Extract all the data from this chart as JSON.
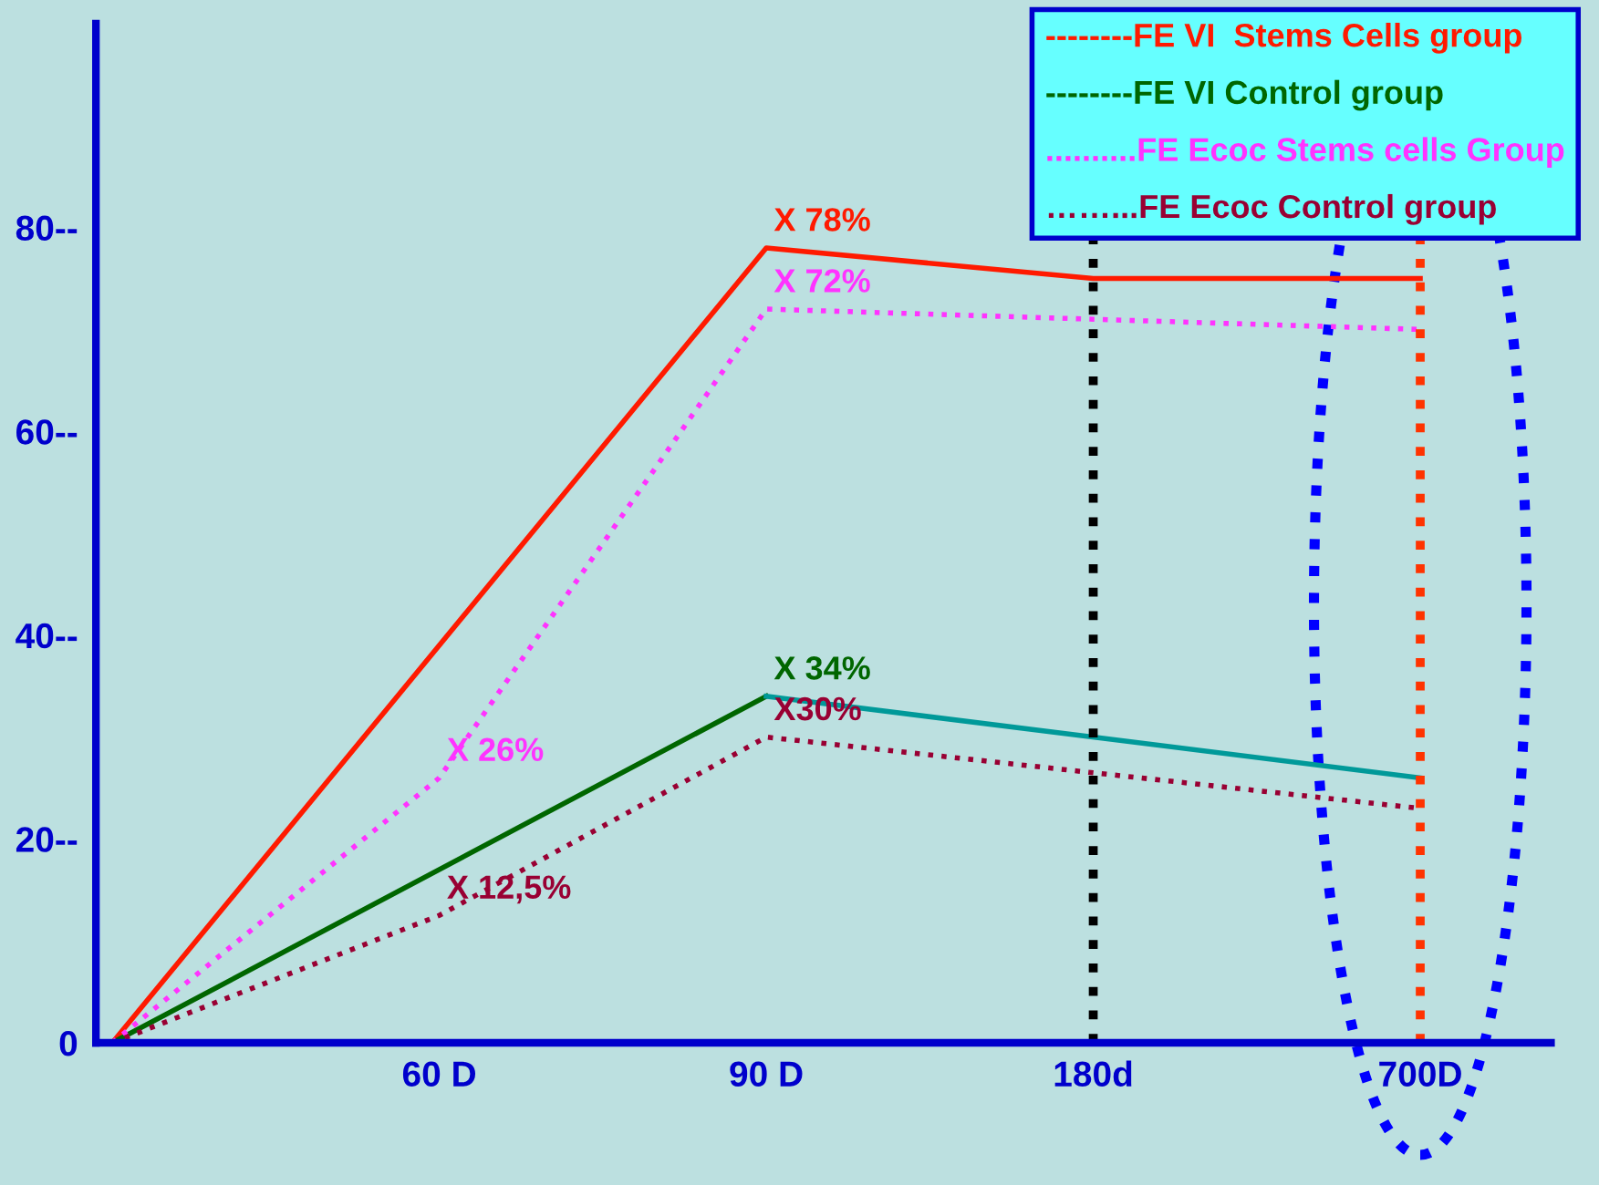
{
  "chart_data": {
    "type": "line",
    "categories": [
      null,
      "60 D",
      "90 D",
      "180d",
      "700D"
    ],
    "series": [
      {
        "name": "--------FE VI  Stems Cells group",
        "color": "#ff1a00",
        "values": [
          0,
          null,
          78,
          75,
          75
        ],
        "line_style": "solid",
        "value_labels": [
          null,
          null,
          "X 78%",
          null,
          null
        ]
      },
      {
        "name": "--------FE VI Control group",
        "color": "#006600",
        "values": [
          0,
          null,
          34,
          null,
          null
        ],
        "line_style": "solid",
        "value_labels": [
          null,
          null,
          "X 34%",
          null,
          null
        ]
      },
      {
        "name": "..........FE Ecoc Stems cells Group",
        "color": "#ff33ff",
        "values": [
          0,
          26,
          72,
          71,
          70
        ],
        "line_style": "dotted",
        "value_labels": [
          null,
          "X 26%",
          "X 72%",
          null,
          null
        ]
      },
      {
        "name": "……...FE Ecoc Control group",
        "color": "#990033",
        "values": [
          0,
          12.5,
          30,
          null,
          23
        ],
        "line_style": "dotted",
        "value_labels": [
          null,
          "X 12,5%",
          "X30%",
          null,
          null
        ]
      },
      {
        "color": "#009999",
        "values": [
          null,
          null,
          34,
          null,
          26
        ],
        "line_style": "solid"
      }
    ],
    "ylim": [
      0,
      100
    ],
    "yticks": [
      {
        "value": 0,
        "label": "0"
      },
      {
        "value": 20,
        "label": "20--"
      },
      {
        "value": 40,
        "label": "40--"
      },
      {
        "value": 60,
        "label": "60--"
      },
      {
        "value": 80,
        "label": "80--"
      }
    ],
    "ref_lines": [
      {
        "axis": "x",
        "value": "180d",
        "color": "#000000",
        "line_style": "dotted"
      },
      {
        "axis": "x",
        "value": "700D",
        "color": "#ff3300",
        "line_style": "dotted"
      }
    ],
    "legend": "top right",
    "grid": false
  }
}
